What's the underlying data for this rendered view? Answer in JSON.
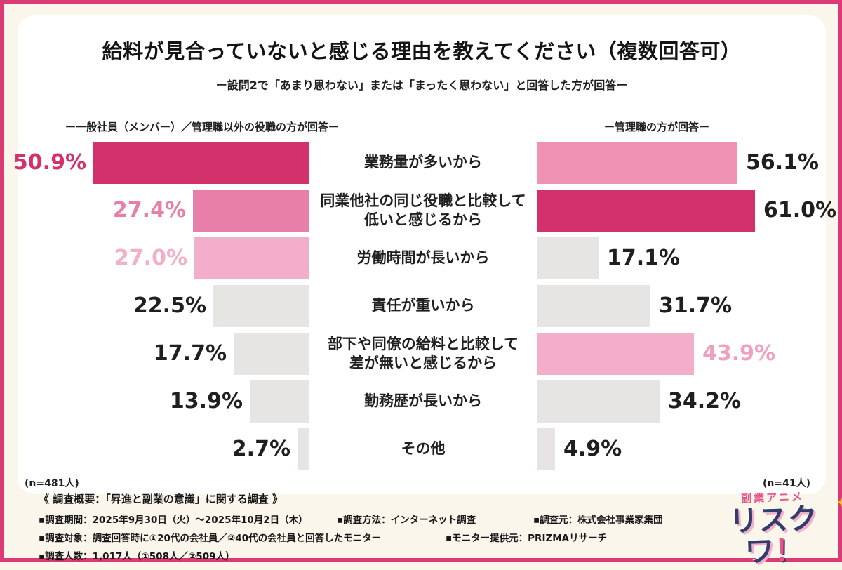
{
  "chart_data": {
    "type": "bar",
    "orientation": "horizontal-diverging",
    "title": "給料が見合っていないと感じる理由を教えてください（複数回答可）",
    "subtitle": "ー設問2で「あまり思わない」または「まったく思わない」と回答した方が回答ー",
    "categories": [
      "業務量が多いから",
      "同業他社の同じ役職と比較して低いと感じるから",
      "労働時間が長いから",
      "責任が重いから",
      "部下や同僚の給料と比較して差が無いと感じるから",
      "勤務歴が長いから",
      "その他"
    ],
    "categories_display": [
      "業務量が多いから",
      "同業他社の同じ役職と比較して\n低いと感じるから",
      "労働時間が長いから",
      "責任が重いから",
      "部下や同僚の給料と比較して\n差が無いと感じるから",
      "勤務歴が長いから",
      "その他"
    ],
    "series": [
      {
        "name": "一般社員（メンバー）／管理職以外の役職",
        "header_label": "ー一般社員（メンバー）／管理職以外の役職の方が回答ー",
        "n_label": "(n=481人)",
        "values": [
          50.9,
          27.4,
          27.0,
          22.5,
          17.7,
          13.9,
          2.7
        ],
        "labels": [
          "50.9%",
          "27.4%",
          "27.0%",
          "22.5%",
          "17.7%",
          "13.9%",
          "2.7%"
        ]
      },
      {
        "name": "管理職",
        "header_label": "ー管理職の方が回答ー",
        "n_label": "(n=41人)",
        "values": [
          56.1,
          61.0,
          17.1,
          31.7,
          43.9,
          34.2,
          4.9
        ],
        "labels": [
          "56.1%",
          "61.0%",
          "17.1%",
          "31.7%",
          "43.9%",
          "34.2%",
          "4.9%"
        ]
      }
    ],
    "xlim": [
      0,
      65
    ],
    "value_suffix": "%",
    "grid": false,
    "legend_position": "top"
  },
  "colors": {
    "frame_border": "#DB3B74",
    "background": "#FAF6EC",
    "card_background": "#FFFFFF",
    "accent_deep": "#D2316B",
    "accent_mid": "#E87FA8",
    "accent_light": "#F3AFC9",
    "bar_gray": "#E7E4E4",
    "text_dark": "#1F1F1F",
    "left_bar_colors": [
      "#D2316B",
      "#E87FA8",
      "#F3AFC9",
      "#E7E4E4",
      "#E7E4E4",
      "#E7E4E4",
      "#E7E4E4"
    ],
    "left_value_colors": [
      "#D2316B",
      "#E87FA8",
      "#F3AFC9",
      "#1F1F1F",
      "#1F1F1F",
      "#1F1F1F",
      "#1F1F1F"
    ],
    "right_bar_colors": [
      "#EF91B3",
      "#D2316B",
      "#E7E4E4",
      "#E7E4E4",
      "#F3AFC9",
      "#E7E4E4",
      "#E7E4E4"
    ],
    "right_value_colors": [
      "#1F1F1F",
      "#1F1F1F",
      "#1F1F1F",
      "#1F1F1F",
      "#F0A0BE",
      "#1F1F1F",
      "#1F1F1F"
    ]
  },
  "footer": {
    "heading": "《 調査概要：「昇進と副業の意識」に関する調査 》",
    "line1": [
      "▪調査期間：2025年9月30日（火）〜2025年10月2日（木）",
      "▪調査方法：インターネット調査",
      "▪調査元：株式会社事業家集団"
    ],
    "line2": [
      "▪調査対象：調査回答時に①20代の会社員／②40代の会社員と回答したモニター",
      "▪モニター提供元：PRIZMAリサーチ"
    ],
    "line3": [
      "▪調査人数：1,017人（①508人／②509人）"
    ]
  },
  "logo": {
    "top_text": "副業アニメ",
    "main_text": "リスクワ",
    "exclamation": "！",
    "star": "✦"
  }
}
